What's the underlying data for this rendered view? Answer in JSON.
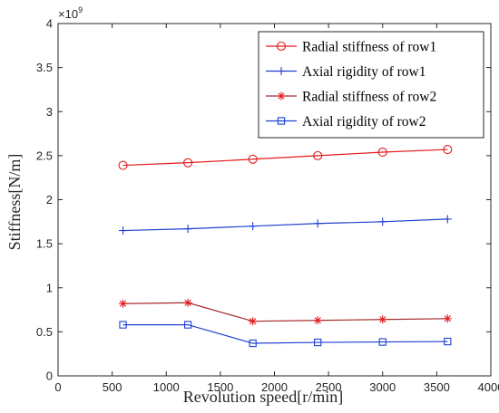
{
  "chart_data": {
    "type": "line",
    "xlabel": "Revolution speed[r/min]",
    "ylabel": "Stiffness[N/m]",
    "y_multiplier": "×10",
    "y_multiplier_exp": "9",
    "xlim": [
      0,
      4000
    ],
    "ylim": [
      0,
      4
    ],
    "x_ticks": [
      "0",
      "500",
      "1000",
      "1500",
      "2000",
      "2500",
      "3000",
      "3500",
      "4000"
    ],
    "y_ticks": [
      "0",
      "0.5",
      "1",
      "1.5",
      "2",
      "2.5",
      "3",
      "3.5",
      "4"
    ],
    "grid": false,
    "legend_position": "top-right",
    "x": [
      600,
      1200,
      1800,
      2400,
      3000,
      3600
    ],
    "series": [
      {
        "name": "Radial stiffness of row1",
        "color": "#e31a1c",
        "marker": "circle",
        "values": [
          2.39,
          2.42,
          2.46,
          2.5,
          2.54,
          2.57
        ]
      },
      {
        "name": "Axial rigidity of row1",
        "color": "#1f3fd1",
        "marker": "plus",
        "values": [
          1.65,
          1.67,
          1.7,
          1.73,
          1.75,
          1.78
        ]
      },
      {
        "name": "Radial stiffness of row2",
        "color": "#a52a2a",
        "marker": "star",
        "values": [
          0.82,
          0.83,
          0.62,
          0.63,
          0.64,
          0.65
        ]
      },
      {
        "name": "Axial rigidity of row2",
        "color": "#1f3fd1",
        "marker": "square",
        "values": [
          0.58,
          0.58,
          0.37,
          0.38,
          0.385,
          0.39
        ]
      }
    ],
    "marker_color_series3": "#e31a1c"
  }
}
